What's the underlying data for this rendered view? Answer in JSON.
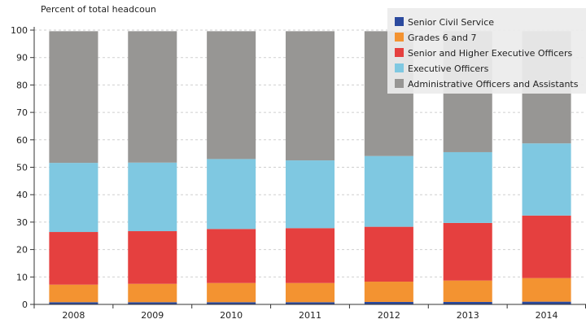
{
  "chart_data": {
    "type": "bar",
    "stacked": true,
    "ylabel": "Percent of total headcoun",
    "ylim": [
      0,
      100
    ],
    "yticks": [
      0,
      10,
      20,
      30,
      40,
      50,
      60,
      70,
      80,
      90,
      100
    ],
    "categories": [
      "2008",
      "2009",
      "2010",
      "2011",
      "2012",
      "2013",
      "2014"
    ],
    "grid": "horizontal dashed",
    "legend_position": "top-right",
    "series": [
      {
        "name": "Senior Civil Service",
        "color": "#2b4a9e",
        "values": [
          0.8,
          0.8,
          0.8,
          0.8,
          0.9,
          0.9,
          1.0
        ]
      },
      {
        "name": "Grades 6 and 7",
        "color": "#f39331",
        "values": [
          6.4,
          6.7,
          7.0,
          7.0,
          7.4,
          7.8,
          8.6
        ]
      },
      {
        "name": "Senior and Higher Executive Officers",
        "color": "#e5403f",
        "values": [
          19.2,
          19.2,
          19.7,
          20.0,
          20.0,
          21.0,
          22.8
        ]
      },
      {
        "name": "Executive Officers",
        "color": "#7fc8e1",
        "values": [
          25.2,
          25.0,
          25.5,
          24.7,
          25.8,
          25.8,
          26.3
        ]
      },
      {
        "name": "Administrative Officers and Assistants",
        "color": "#979694",
        "values": [
          48.0,
          47.9,
          46.6,
          47.1,
          45.5,
          44.1,
          40.9
        ]
      }
    ]
  }
}
